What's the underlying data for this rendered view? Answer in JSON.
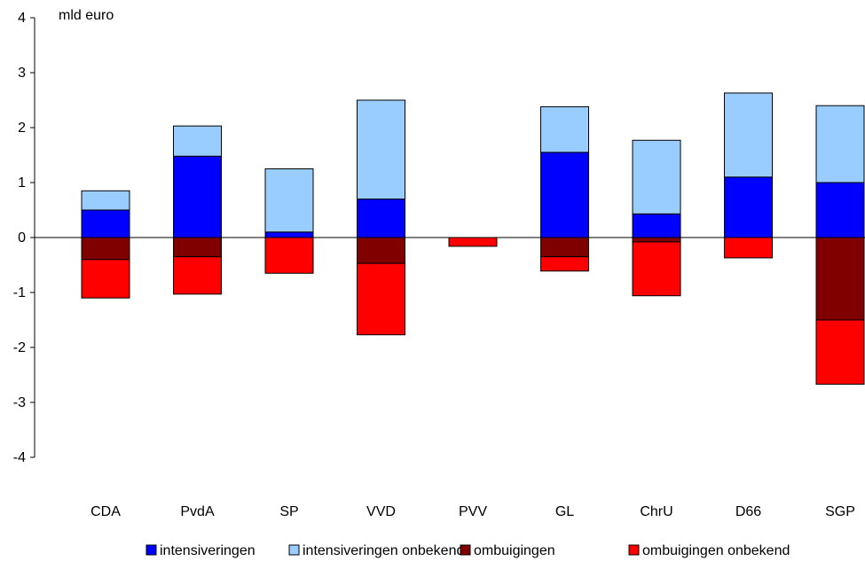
{
  "chart_data": {
    "type": "bar",
    "stacked": true,
    "ylabel": "mld euro",
    "ylim": [
      -4,
      4
    ],
    "yticks": [
      4,
      3,
      2,
      1,
      0,
      -1,
      -2,
      -3,
      -4
    ],
    "grid": false,
    "legend_position": "bottom",
    "categories": [
      "CDA",
      "PvdA",
      "SP",
      "VVD",
      "PVV",
      "GL",
      "ChrU",
      "D66",
      "SGP"
    ],
    "series": [
      {
        "name": "intensiveringen",
        "color": "#0000ff",
        "values": [
          0.5,
          1.48,
          0.1,
          0.7,
          0.0,
          1.55,
          0.43,
          1.1,
          1.0
        ]
      },
      {
        "name": "intensiveringen onbekend",
        "color": "#99ccff",
        "values": [
          0.35,
          0.55,
          1.15,
          1.8,
          0.0,
          0.83,
          1.34,
          1.53,
          1.4
        ]
      },
      {
        "name": "ombuigingen",
        "color": "#800000",
        "values": [
          -0.4,
          -0.35,
          0.0,
          -0.47,
          0.0,
          -0.35,
          -0.08,
          0.0,
          -1.5
        ]
      },
      {
        "name": "ombuigingen onbekend",
        "color": "#ff0000",
        "values": [
          -0.7,
          -0.68,
          -0.65,
          -1.3,
          -0.16,
          -0.26,
          -0.98,
          -0.37,
          -1.17
        ]
      }
    ]
  }
}
